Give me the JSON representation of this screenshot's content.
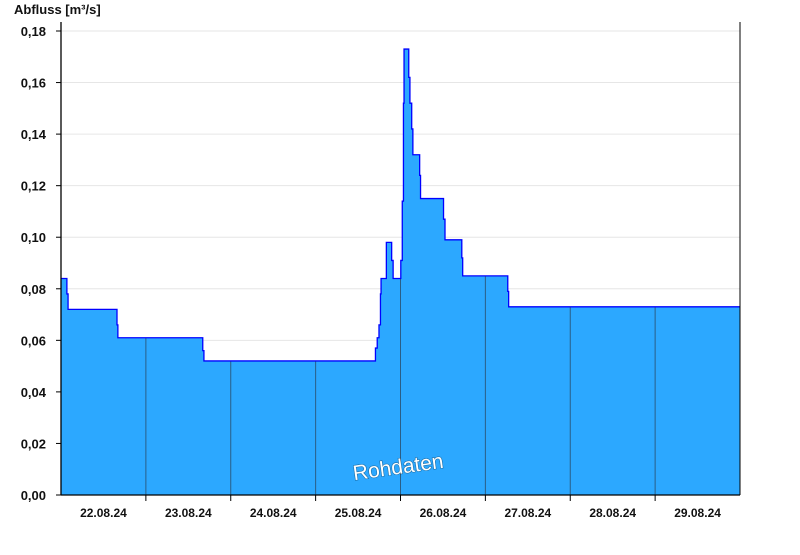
{
  "chart_data": {
    "type": "area",
    "step": true,
    "ylabel": "Abfluss [m³/s]",
    "ylim": [
      0,
      0.18
    ],
    "yticks": [
      "0,00",
      "0,02",
      "0,04",
      "0,06",
      "0,08",
      "0,10",
      "0,12",
      "0,14",
      "0,16",
      "0,18"
    ],
    "xlim": [
      "2024-08-22T00:00",
      "2024-08-30T00:00"
    ],
    "xticks": [
      "22.08.24",
      "23.08.24",
      "24.08.24",
      "25.08.24",
      "26.08.24",
      "27.08.24",
      "28.08.24",
      "29.08.24"
    ],
    "grid": true,
    "annotation": "Rohdaten",
    "colors": {
      "fill": "#2ca8ff",
      "line": "#0000ff",
      "day_line": "#2a5e86",
      "grid": "#e6e6e6"
    },
    "points": [
      [
        "2024-08-22T00:00",
        0.084
      ],
      [
        "2024-08-22T01:40",
        0.078
      ],
      [
        "2024-08-22T02:00",
        0.072
      ],
      [
        "2024-08-22T15:50",
        0.066
      ],
      [
        "2024-08-22T16:05",
        0.061
      ],
      [
        "2024-08-23T16:05",
        0.056
      ],
      [
        "2024-08-23T16:25",
        0.052
      ],
      [
        "2024-08-25T16:55",
        0.057
      ],
      [
        "2024-08-25T17:25",
        0.061
      ],
      [
        "2024-08-25T17:55",
        0.066
      ],
      [
        "2024-08-25T18:20",
        0.078
      ],
      [
        "2024-08-25T18:30",
        0.084
      ],
      [
        "2024-08-25T20:00",
        0.098
      ],
      [
        "2024-08-25T21:30",
        0.091
      ],
      [
        "2024-08-25T21:55",
        0.084
      ],
      [
        "2024-08-26T00:05",
        0.091
      ],
      [
        "2024-08-26T00:30",
        0.114
      ],
      [
        "2024-08-26T00:50",
        0.152
      ],
      [
        "2024-08-26T01:00",
        0.173
      ],
      [
        "2024-08-26T02:20",
        0.162
      ],
      [
        "2024-08-26T02:40",
        0.152
      ],
      [
        "2024-08-26T03:10",
        0.142
      ],
      [
        "2024-08-26T03:30",
        0.132
      ],
      [
        "2024-08-26T05:25",
        0.124
      ],
      [
        "2024-08-26T05:40",
        0.115
      ],
      [
        "2024-08-26T12:10",
        0.107
      ],
      [
        "2024-08-26T12:35",
        0.099
      ],
      [
        "2024-08-26T17:20",
        0.092
      ],
      [
        "2024-08-26T17:35",
        0.085
      ],
      [
        "2024-08-27T06:20",
        0.079
      ],
      [
        "2024-08-27T06:35",
        0.073
      ]
    ]
  }
}
